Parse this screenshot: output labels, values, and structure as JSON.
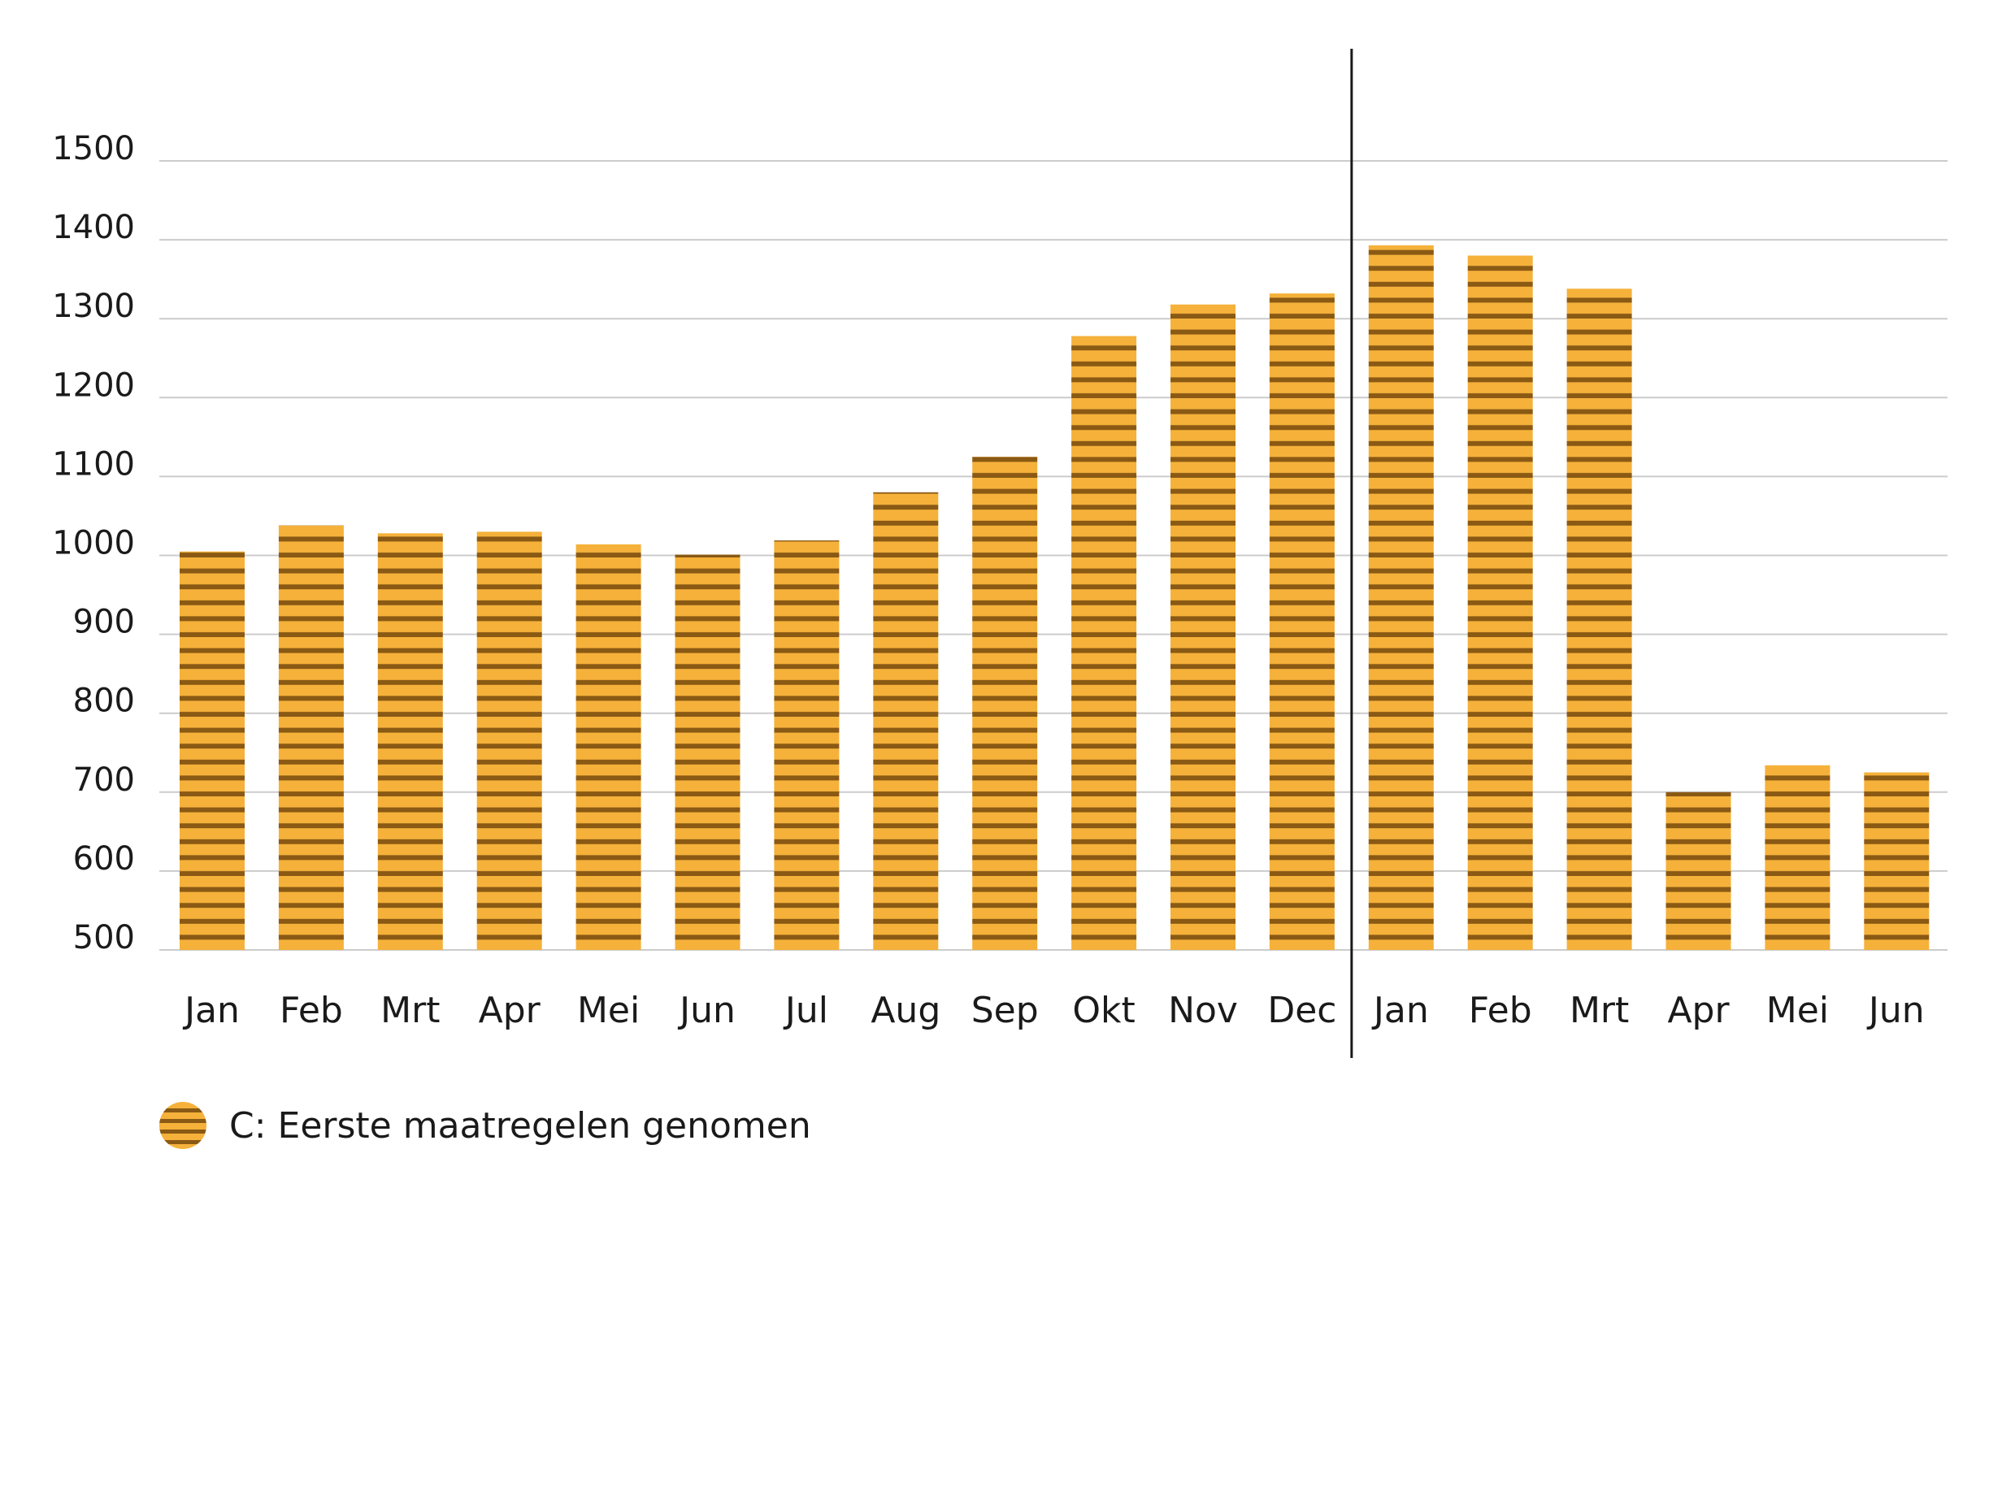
{
  "chart_data": {
    "type": "bar",
    "title": "",
    "xlabel": "",
    "ylabel": "",
    "ylim": [
      500,
      1500
    ],
    "yticks": [
      500,
      600,
      700,
      800,
      900,
      1000,
      1100,
      1200,
      1300,
      1400,
      1500
    ],
    "grid": true,
    "categories": [
      "Jan",
      "Feb",
      "Mrt",
      "Apr",
      "Mei",
      "Jun",
      "Jul",
      "Aug",
      "Sep",
      "Okt",
      "Nov",
      "Dec",
      "Jan",
      "Feb",
      "Mrt",
      "Apr",
      "Mei",
      "Jun"
    ],
    "series": [
      {
        "name": "C: Eerste maatregelen genomen",
        "values": [
          1005,
          1038,
          1028,
          1030,
          1014,
          1001,
          1019,
          1080,
          1125,
          1278,
          1318,
          1332,
          1393,
          1380,
          1338,
          700,
          734,
          725
        ]
      }
    ],
    "divider_after_category_index": 11,
    "colors": {
      "bar": "#f5b13a",
      "stripe": "#8a5a14",
      "grid": "#cccccc",
      "divider": "#1a1a1a"
    }
  },
  "legend": {
    "label": "C: Eerste maatregelen genomen"
  }
}
